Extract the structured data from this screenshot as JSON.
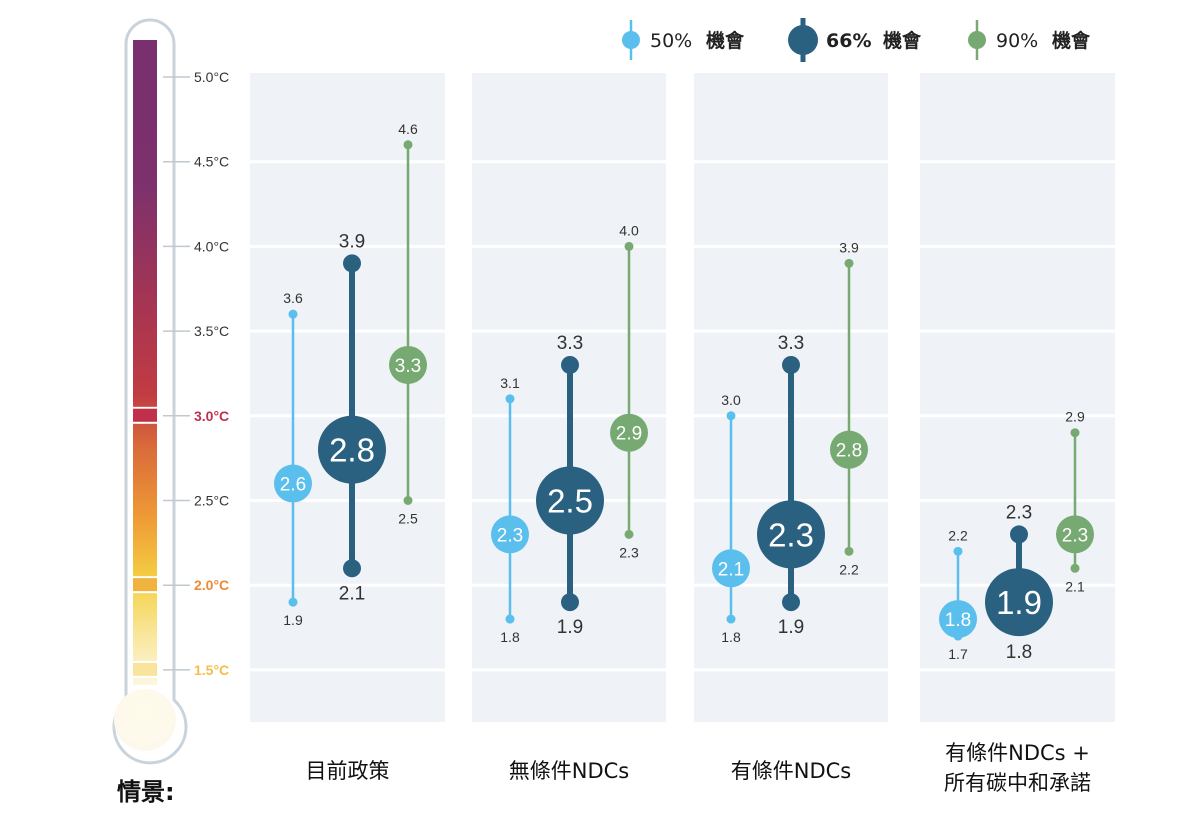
{
  "chart_data": {
    "type": "range-dot",
    "title": "",
    "ylabel": "°C",
    "ylim": [
      1.5,
      5.0
    ],
    "grid": true,
    "y_ticks": [
      {
        "value": 5.0,
        "label": "5.0°C",
        "color": "#333333"
      },
      {
        "value": 4.5,
        "label": "4.5°C",
        "color": "#333333"
      },
      {
        "value": 4.0,
        "label": "4.0°C",
        "color": "#333333"
      },
      {
        "value": 3.5,
        "label": "3.5°C",
        "color": "#333333"
      },
      {
        "value": 3.0,
        "label": "3.0°C",
        "color": "#c0304a"
      },
      {
        "value": 2.5,
        "label": "2.5°C",
        "color": "#333333"
      },
      {
        "value": 2.0,
        "label": "2.0°C",
        "color": "#ee8a34"
      },
      {
        "value": 1.5,
        "label": "1.5°C",
        "color": "#f5be4a"
      }
    ],
    "legend": {
      "position": "top-right",
      "items": [
        {
          "key": "p50",
          "pct": "50%",
          "label": "機會",
          "color": "#5bbfee",
          "bold": false
        },
        {
          "key": "p66",
          "pct": "66%",
          "label": "機會",
          "color": "#2a6180",
          "bold": true
        },
        {
          "key": "p90",
          "pct": "90%",
          "label": "機會",
          "color": "#77aa72",
          "bold": false
        }
      ]
    },
    "scenario_label": "情景:",
    "categories": [
      [
        "目前政策"
      ],
      [
        "無條件NDCs"
      ],
      [
        "有條件NDCs"
      ],
      [
        "有條件NDCs +",
        "所有碳中和承諾"
      ]
    ],
    "series": [
      {
        "name": "50% 機會",
        "key": "p50",
        "color": "#5bbfee",
        "central": [
          2.6,
          2.3,
          2.1,
          1.8
        ],
        "low": [
          1.9,
          1.8,
          1.8,
          1.7
        ],
        "high": [
          3.6,
          3.1,
          3.0,
          2.2
        ]
      },
      {
        "name": "66% 機會",
        "key": "p66",
        "color": "#2a6180",
        "central": [
          2.8,
          2.5,
          2.3,
          1.9
        ],
        "low": [
          2.1,
          1.9,
          1.9,
          1.8
        ],
        "high": [
          3.9,
          3.3,
          3.3,
          2.3
        ]
      },
      {
        "name": "90% 機會",
        "key": "p90",
        "color": "#77aa72",
        "central": [
          3.3,
          2.9,
          2.8,
          2.3
        ],
        "low": [
          2.5,
          2.3,
          2.2,
          2.1
        ],
        "high": [
          4.6,
          4.0,
          3.9,
          2.9
        ]
      }
    ],
    "thermometer": {
      "highlight_levels": [
        3.0,
        2.0,
        1.5
      ]
    }
  }
}
